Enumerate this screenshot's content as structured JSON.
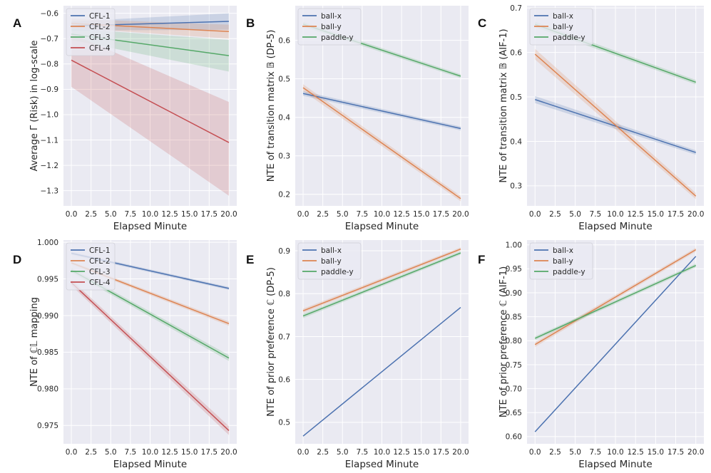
{
  "figure": {
    "colors": {
      "blue": "#4c72b0",
      "orange": "#dd8452",
      "green": "#55a868",
      "red": "#c44e52"
    }
  },
  "chart_data": [
    {
      "id": "A",
      "letter": "A",
      "type": "line",
      "xlabel": "Elapsed Minute",
      "ylabel": "Average Γ (Risk) in log-scale",
      "xlim": [
        -1.0,
        21.0
      ],
      "ylim": [
        -1.36,
        -0.57
      ],
      "xticks": [
        0,
        2.5,
        5,
        7.5,
        10,
        12.5,
        15,
        17.5,
        20
      ],
      "xtick_labels": [
        "0.0",
        "2.5",
        "5.0",
        "7.5",
        "10.0",
        "12.5",
        "15.0",
        "17.5",
        "20.0"
      ],
      "yticks": [
        -1.3,
        -1.2,
        -1.1,
        -1.0,
        -0.9,
        -0.8,
        -0.7,
        -0.6
      ],
      "ytick_labels": [
        "−1.3",
        "−1.2",
        "−1.1",
        "−1.0",
        "−0.9",
        "−0.8",
        "−0.7",
        "−0.6"
      ],
      "legend_position": "top-left",
      "series": [
        {
          "name": "CFL-1",
          "color": "#4c72b0",
          "x": [
            0,
            20
          ],
          "y": [
            -0.65,
            -0.632
          ],
          "band": [
            [
              -0.668,
              -0.632
            ],
            [
              -0.665,
              -0.6
            ]
          ]
        },
        {
          "name": "CFL-2",
          "color": "#dd8452",
          "x": [
            0,
            20
          ],
          "y": [
            -0.64,
            -0.672
          ],
          "band": [
            [
              -0.658,
              -0.622
            ],
            [
              -0.7,
              -0.645
            ]
          ]
        },
        {
          "name": "CFL-3",
          "color": "#55a868",
          "x": [
            0,
            20
          ],
          "y": [
            -0.682,
            -0.767
          ],
          "band": [
            [
              -0.705,
              -0.66
            ],
            [
              -0.83,
              -0.705
            ]
          ]
        },
        {
          "name": "CFL-4",
          "color": "#c44e52",
          "x": [
            0,
            20
          ],
          "y": [
            -0.785,
            -1.11
          ],
          "band": [
            [
              -0.89,
              -0.68
            ],
            [
              -1.32,
              -0.95
            ]
          ]
        }
      ]
    },
    {
      "id": "B",
      "letter": "B",
      "type": "line",
      "xlabel": "Elapsed Minute",
      "ylabel": "NTE of transition matrix 𝔹 (DP-5)",
      "xlim": [
        -1.0,
        21.0
      ],
      "ylim": [
        0.17,
        0.69
      ],
      "xticks": [
        0,
        2.5,
        5,
        7.5,
        10,
        12.5,
        15,
        17.5,
        20
      ],
      "xtick_labels": [
        "0.0",
        "2.5",
        "5.0",
        "7.5",
        "10.0",
        "12.5",
        "15.0",
        "17.5",
        "20.0"
      ],
      "yticks": [
        0.2,
        0.3,
        0.4,
        0.5,
        0.6
      ],
      "ytick_labels": [
        "0.2",
        "0.3",
        "0.4",
        "0.5",
        "0.6"
      ],
      "legend_position": "top-left",
      "series": [
        {
          "name": "ball-x",
          "color": "#4c72b0",
          "x": [
            0,
            20
          ],
          "y": [
            0.462,
            0.371
          ],
          "band": [
            [
              0.456,
              0.468
            ],
            [
              0.366,
              0.376
            ]
          ]
        },
        {
          "name": "ball-y",
          "color": "#dd8452",
          "x": [
            0,
            20
          ],
          "y": [
            0.477,
            0.189
          ],
          "band": [
            [
              0.468,
              0.486
            ],
            [
              0.182,
              0.196
            ]
          ]
        },
        {
          "name": "paddle-y",
          "color": "#55a868",
          "x": [
            0,
            20
          ],
          "y": [
            0.642,
            0.507
          ],
          "band": [
            [
              0.636,
              0.648
            ],
            [
              0.502,
              0.512
            ]
          ]
        }
      ]
    },
    {
      "id": "C",
      "letter": "C",
      "type": "line",
      "xlabel": "Elapsed Minute",
      "ylabel": "NTE of transition matrix 𝔹 (AIF-1)",
      "xlim": [
        -1.0,
        21.0
      ],
      "ylim": [
        0.255,
        0.705
      ],
      "xticks": [
        0,
        2.5,
        5,
        7.5,
        10,
        12.5,
        15,
        17.5,
        20
      ],
      "xtick_labels": [
        "0.0",
        "2.5",
        "5.0",
        "7.5",
        "10.0",
        "12.5",
        "15.0",
        "17.5",
        "20.0"
      ],
      "yticks": [
        0.3,
        0.4,
        0.5,
        0.6,
        0.7
      ],
      "ytick_labels": [
        "0.3",
        "0.4",
        "0.5",
        "0.6",
        "0.7"
      ],
      "legend_position": "top-left",
      "series": [
        {
          "name": "ball-x",
          "color": "#4c72b0",
          "x": [
            0,
            20
          ],
          "y": [
            0.494,
            0.375
          ],
          "band": [
            [
              0.486,
              0.502
            ],
            [
              0.37,
              0.38
            ]
          ]
        },
        {
          "name": "ball-y",
          "color": "#dd8452",
          "x": [
            0,
            20
          ],
          "y": [
            0.596,
            0.277
          ],
          "band": [
            [
              0.584,
              0.608
            ],
            [
              0.27,
              0.284
            ]
          ]
        },
        {
          "name": "paddle-y",
          "color": "#55a868",
          "x": [
            0,
            20
          ],
          "y": [
            0.663,
            0.533
          ],
          "band": [
            [
              0.657,
              0.669
            ],
            [
              0.528,
              0.538
            ]
          ]
        }
      ]
    },
    {
      "id": "D",
      "letter": "D",
      "type": "line",
      "xlabel": "Elapsed Minute",
      "ylabel": "NTE of ℂ𝕃 mapping",
      "xlim": [
        -1.0,
        21.0
      ],
      "ylim": [
        0.9725,
        1.0003
      ],
      "xticks": [
        0,
        2.5,
        5,
        7.5,
        10,
        12.5,
        15,
        17.5,
        20
      ],
      "xtick_labels": [
        "0.0",
        "2.5",
        "5.0",
        "7.5",
        "10.0",
        "12.5",
        "15.0",
        "17.5",
        "20.0"
      ],
      "yticks": [
        0.975,
        0.98,
        0.985,
        0.99,
        0.995,
        1.0
      ],
      "ytick_labels": [
        "0.975",
        "0.980",
        "0.985",
        "0.990",
        "0.995",
        "1.000"
      ],
      "legend_position": "top-left",
      "series": [
        {
          "name": "CFL-1",
          "color": "#4c72b0",
          "x": [
            0,
            20
          ],
          "y": [
            0.9985,
            0.9937
          ],
          "band": [
            [
              0.9983,
              0.9987
            ],
            [
              0.9935,
              0.9939
            ]
          ]
        },
        {
          "name": "CFL-2",
          "color": "#dd8452",
          "x": [
            0,
            20
          ],
          "y": [
            0.9972,
            0.9889
          ],
          "band": [
            [
              0.997,
              0.9974
            ],
            [
              0.9886,
              0.9892
            ]
          ]
        },
        {
          "name": "CFL-3",
          "color": "#55a868",
          "x": [
            0,
            20
          ],
          "y": [
            0.9962,
            0.9842
          ],
          "band": [
            [
              0.9959,
              0.9965
            ],
            [
              0.9838,
              0.9846
            ]
          ]
        },
        {
          "name": "CFL-4",
          "color": "#c44e52",
          "x": [
            0,
            20
          ],
          "y": [
            0.9945,
            0.9743
          ],
          "band": [
            [
              0.9941,
              0.9949
            ],
            [
              0.9737,
              0.9749
            ]
          ]
        }
      ]
    },
    {
      "id": "E",
      "letter": "E",
      "type": "line",
      "xlabel": "Elapsed Minute",
      "ylabel": "NTE of prior preference ℂ (DP-5)",
      "xlim": [
        -1.0,
        21.0
      ],
      "ylim": [
        0.45,
        0.925
      ],
      "xticks": [
        0,
        2.5,
        5,
        7.5,
        10,
        12.5,
        15,
        17.5,
        20
      ],
      "xtick_labels": [
        "0.0",
        "2.5",
        "5.0",
        "7.5",
        "10.0",
        "12.5",
        "15.0",
        "17.5",
        "20.0"
      ],
      "yticks": [
        0.5,
        0.6,
        0.7,
        0.8,
        0.9
      ],
      "ytick_labels": [
        "0.5",
        "0.6",
        "0.7",
        "0.8",
        "0.9"
      ],
      "legend_position": "top-left",
      "series": [
        {
          "name": "ball-x",
          "color": "#4c72b0",
          "x": [
            0,
            20
          ],
          "y": [
            0.468,
            0.768
          ],
          "band": [
            [
              0.467,
              0.469
            ],
            [
              0.767,
              0.769
            ]
          ]
        },
        {
          "name": "ball-y",
          "color": "#dd8452",
          "x": [
            0,
            20
          ],
          "y": [
            0.76,
            0.904
          ],
          "band": [
            [
              0.755,
              0.765
            ],
            [
              0.9,
              0.908
            ]
          ]
        },
        {
          "name": "paddle-y",
          "color": "#55a868",
          "x": [
            0,
            20
          ],
          "y": [
            0.748,
            0.895
          ],
          "band": [
            [
              0.743,
              0.753
            ],
            [
              0.891,
              0.899
            ]
          ]
        }
      ]
    },
    {
      "id": "F",
      "letter": "F",
      "type": "line",
      "xlabel": "Elapsed Minute",
      "ylabel": "NTE of prior preference ℂ (AIF-1)",
      "xlim": [
        -1.0,
        21.0
      ],
      "ylim": [
        0.585,
        1.01
      ],
      "xticks": [
        0,
        2.5,
        5,
        7.5,
        10,
        12.5,
        15,
        17.5,
        20
      ],
      "xtick_labels": [
        "0.0",
        "2.5",
        "5.0",
        "7.5",
        "10.0",
        "12.5",
        "15.0",
        "17.5",
        "20.0"
      ],
      "yticks": [
        0.6,
        0.65,
        0.7,
        0.75,
        0.8,
        0.85,
        0.9,
        0.95,
        1.0
      ],
      "ytick_labels": [
        "0.60",
        "0.65",
        "0.70",
        "0.75",
        "0.80",
        "0.85",
        "0.90",
        "0.95",
        "1.00"
      ],
      "legend_position": "top-left",
      "series": [
        {
          "name": "ball-x",
          "color": "#4c72b0",
          "x": [
            0,
            20
          ],
          "y": [
            0.61,
            0.976
          ],
          "band": [
            [
              0.609,
              0.611
            ],
            [
              0.975,
              0.977
            ]
          ]
        },
        {
          "name": "ball-y",
          "color": "#dd8452",
          "x": [
            0,
            20
          ],
          "y": [
            0.792,
            0.99
          ],
          "band": [
            [
              0.787,
              0.797
            ],
            [
              0.986,
              0.994
            ]
          ]
        },
        {
          "name": "paddle-y",
          "color": "#55a868",
          "x": [
            0,
            20
          ],
          "y": [
            0.805,
            0.957
          ],
          "band": [
            [
              0.801,
              0.809
            ],
            [
              0.953,
              0.961
            ]
          ]
        }
      ]
    }
  ]
}
